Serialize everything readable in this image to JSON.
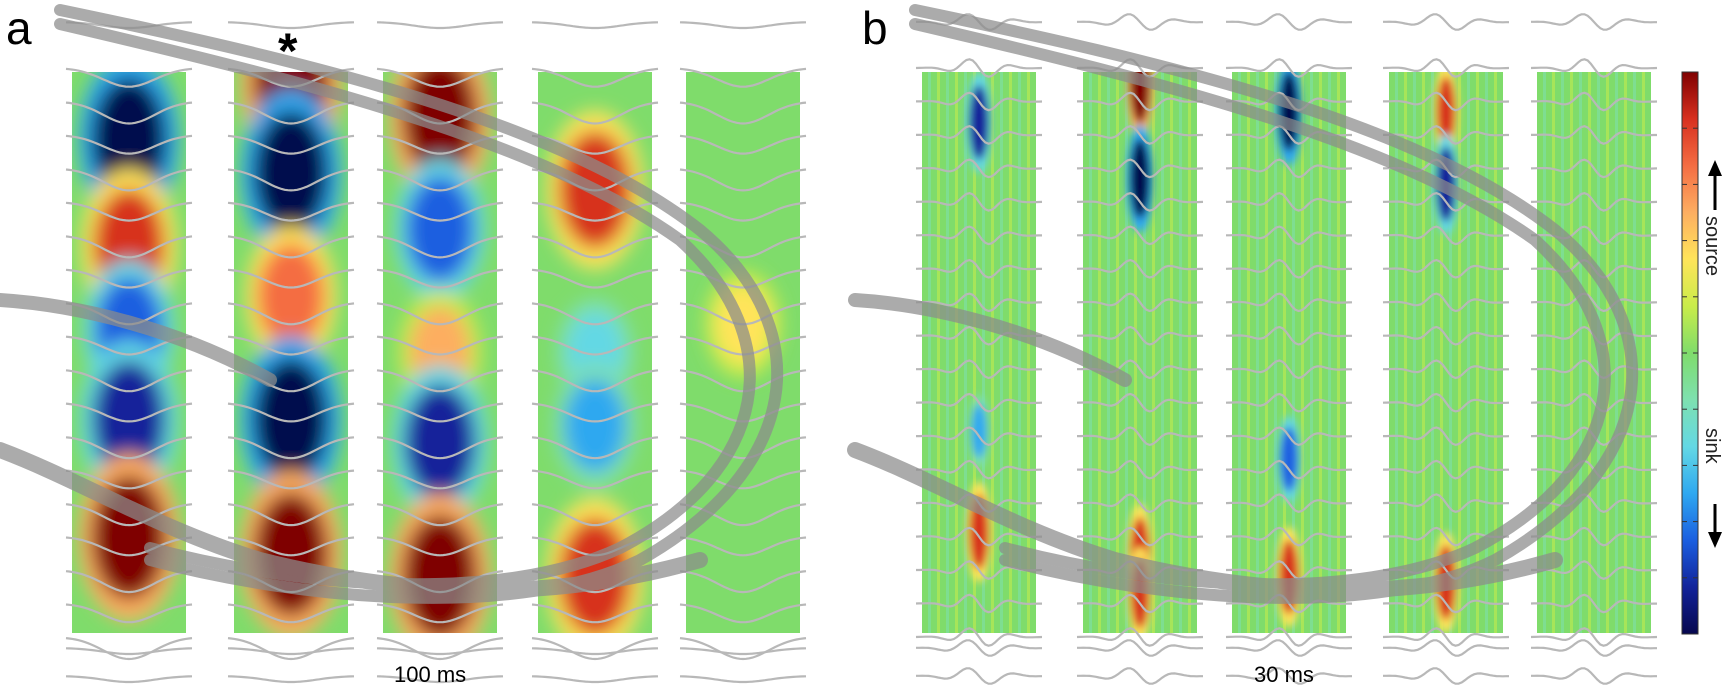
{
  "panels": [
    {
      "label": "a",
      "time_label": "100 ms",
      "marker": "*",
      "columns": [
        {
          "blobs": [
            {
              "cy": 0.12,
              "v": -1.0
            },
            {
              "cy": 0.31,
              "v": 0.85
            },
            {
              "cy": 0.46,
              "v": -0.7
            },
            {
              "cy": 0.62,
              "v": -0.9
            },
            {
              "cy": 0.83,
              "v": 1.0
            }
          ]
        },
        {
          "blobs": [
            {
              "cy": 0.02,
              "v": 1.0
            },
            {
              "cy": 0.18,
              "v": -1.0
            },
            {
              "cy": 0.4,
              "v": 0.7
            },
            {
              "cy": 0.62,
              "v": -1.0
            },
            {
              "cy": 0.86,
              "v": 1.0
            }
          ]
        },
        {
          "blobs": [
            {
              "cy": 0.08,
              "v": 1.0
            },
            {
              "cy": 0.28,
              "v": -0.7
            },
            {
              "cy": 0.5,
              "v": 0.5
            },
            {
              "cy": 0.66,
              "v": -0.85
            },
            {
              "cy": 0.9,
              "v": 1.0
            }
          ]
        },
        {
          "blobs": [
            {
              "cy": 0.21,
              "v": 0.9
            },
            {
              "cy": 0.5,
              "v": -0.3
            },
            {
              "cy": 0.63,
              "v": -0.5
            },
            {
              "cy": 0.9,
              "v": 0.9
            }
          ]
        },
        {
          "blobs": [
            {
              "cy": 0.45,
              "v": 0.3
            }
          ]
        }
      ]
    },
    {
      "label": "b",
      "time_label": "30 ms",
      "columns": [
        {
          "blobs": [
            {
              "cy": 0.09,
              "v": -0.9
            },
            {
              "cy": 0.64,
              "v": -0.5
            },
            {
              "cy": 0.82,
              "v": 0.9
            }
          ]
        },
        {
          "blobs": [
            {
              "cy": 0.02,
              "v": 1.0
            },
            {
              "cy": 0.19,
              "v": -1.0
            },
            {
              "cy": 0.86,
              "v": 0.9
            },
            {
              "cy": 0.93,
              "v": 0.8
            }
          ]
        },
        {
          "blobs": [
            {
              "cy": 0.07,
              "v": -1.0
            },
            {
              "cy": 0.69,
              "v": -0.7
            },
            {
              "cy": 0.9,
              "v": 0.9
            }
          ]
        },
        {
          "blobs": [
            {
              "cy": 0.07,
              "v": 0.8
            },
            {
              "cy": 0.2,
              "v": -0.9
            },
            {
              "cy": 0.91,
              "v": 0.9
            }
          ]
        },
        {
          "blobs": []
        }
      ]
    }
  ],
  "colorbar": {
    "source_label": "source",
    "sink_label": "sink",
    "colors": [
      "#7f0000",
      "#d7301f",
      "#f46d43",
      "#fdae61",
      "#ffe45a",
      "#c9ec4a",
      "#7fdc6b",
      "#7ee0b0",
      "#63d8e4",
      "#2fa8f0",
      "#1b5fe0",
      "#12239a",
      "#06074e"
    ]
  },
  "colors": {
    "background_field": "#7fdc6b",
    "trace": "#b8b8b8",
    "anatomy": "#8c8c8c"
  }
}
